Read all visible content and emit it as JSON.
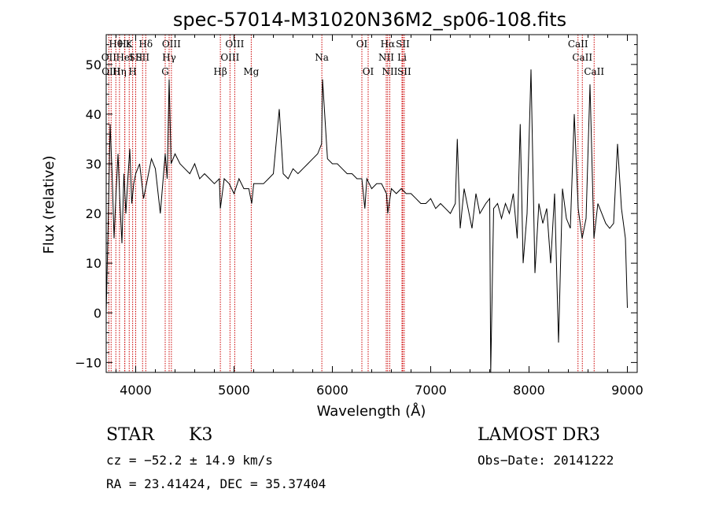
{
  "chart_data": {
    "type": "line",
    "title": "spec-57014-M31020N36M2_sp06-108.fits",
    "xlabel": "Wavelength (Å)",
    "ylabel": "Flux (relative)",
    "xlim": [
      3700,
      9100
    ],
    "ylim": [
      -12,
      56
    ],
    "xticks": [
      4000,
      5000,
      6000,
      7000,
      8000,
      9000
    ],
    "yticks": [
      -10,
      0,
      10,
      20,
      30,
      40,
      50
    ],
    "xtick_labels": [
      "4000",
      "5000",
      "6000",
      "7000",
      "8000",
      "9000"
    ],
    "ytick_labels": [
      "−10",
      "0",
      "10",
      "20",
      "30",
      "40",
      "50"
    ],
    "line_color": "#000000",
    "marker_color": "#cc0000",
    "series": [
      {
        "name": "spectrum",
        "x": [
          3700,
          3720,
          3740,
          3760,
          3780,
          3800,
          3820,
          3840,
          3860,
          3880,
          3900,
          3920,
          3940,
          3960,
          3980,
          4000,
          4040,
          4080,
          4120,
          4160,
          4200,
          4250,
          4300,
          4320,
          4340,
          4360,
          4400,
          4450,
          4500,
          4550,
          4600,
          4650,
          4700,
          4750,
          4800,
          4850,
          4861,
          4900,
          4950,
          5000,
          5050,
          5100,
          5150,
          5180,
          5200,
          5250,
          5300,
          5350,
          5400,
          5460,
          5500,
          5550,
          5600,
          5650,
          5700,
          5750,
          5800,
          5850,
          5890,
          5900,
          5950,
          6000,
          6050,
          6100,
          6150,
          6200,
          6250,
          6300,
          6330,
          6350,
          6400,
          6450,
          6500,
          6550,
          6563,
          6600,
          6650,
          6700,
          6750,
          6800,
          6850,
          6900,
          6950,
          7000,
          7050,
          7100,
          7150,
          7200,
          7250,
          7270,
          7300,
          7340,
          7380,
          7420,
          7460,
          7500,
          7560,
          7600,
          7610,
          7640,
          7680,
          7720,
          7760,
          7800,
          7840,
          7880,
          7910,
          7940,
          7980,
          8020,
          8060,
          8100,
          8140,
          8180,
          8220,
          8260,
          8300,
          8340,
          8380,
          8420,
          8460,
          8500,
          8540,
          8580,
          8620,
          8660,
          8700,
          8740,
          8780,
          8820,
          8860,
          8900,
          8940,
          8980,
          9000
        ],
        "y": [
          0,
          18,
          38,
          28,
          15,
          24,
          32,
          22,
          14,
          28,
          20,
          27,
          33,
          22,
          26,
          28,
          30,
          23,
          27,
          31,
          29,
          20,
          32,
          27,
          47,
          30,
          32,
          30,
          29,
          28,
          30,
          27,
          28,
          27,
          26,
          27,
          21,
          27,
          26,
          24,
          27,
          25,
          25,
          22,
          26,
          26,
          26,
          27,
          28,
          41,
          28,
          27,
          29,
          28,
          29,
          30,
          31,
          32,
          34,
          47,
          31,
          30,
          30,
          29,
          28,
          28,
          27,
          27,
          21,
          27,
          25,
          26,
          26,
          24,
          20,
          25,
          24,
          25,
          24,
          24,
          23,
          22,
          22,
          23,
          21,
          22,
          21,
          20,
          22,
          35,
          17,
          25,
          21,
          17,
          24,
          20,
          22,
          23,
          -12,
          21,
          22,
          19,
          22,
          20,
          24,
          15,
          38,
          10,
          20,
          49,
          8,
          22,
          18,
          21,
          10,
          24,
          -6,
          25,
          19,
          17,
          40,
          21,
          15,
          19,
          46,
          15,
          22,
          20,
          18,
          17,
          18,
          34,
          21,
          15,
          1
        ],
        "values": [
          0,
          18,
          38,
          28,
          15,
          24,
          32,
          22,
          14,
          28,
          20,
          27,
          33,
          22,
          26,
          28,
          30,
          23,
          27,
          31,
          29,
          20,
          32,
          27,
          47,
          30,
          32,
          30,
          29,
          28,
          30,
          27,
          28,
          27,
          26,
          27,
          21,
          27,
          26,
          24,
          27,
          25,
          25,
          22,
          26,
          26,
          26,
          27,
          28,
          41,
          28,
          27,
          29,
          28,
          29,
          30,
          31,
          32,
          34,
          47,
          31,
          30,
          30,
          29,
          28,
          28,
          27,
          27,
          21,
          27,
          25,
          26,
          26,
          24,
          20,
          25,
          24,
          25,
          24,
          24,
          23,
          22,
          22,
          23,
          21,
          22,
          21,
          20,
          22,
          35,
          17,
          25,
          21,
          17,
          24,
          20,
          22,
          23,
          -12,
          21,
          22,
          19,
          22,
          20,
          24,
          15,
          38,
          10,
          20,
          49,
          8,
          22,
          18,
          21,
          10,
          24,
          -6,
          25,
          19,
          17,
          40,
          21,
          15,
          19,
          46,
          15,
          22,
          20,
          18,
          17,
          18,
          34,
          21,
          15,
          1
        ]
      }
    ],
    "line_markers": [
      {
        "name": "Hθ",
        "wave": 3798,
        "row": 0
      },
      {
        "name": "OII",
        "wave": 3727,
        "row": 1
      },
      {
        "name": "OIII",
        "wave": 3750,
        "row": 2
      },
      {
        "name": "Hη",
        "wave": 3835,
        "row": 2
      },
      {
        "name": "Hε",
        "wave": 3889,
        "row": 0
      },
      {
        "name": "HeI",
        "wave": 3889,
        "row": 1
      },
      {
        "name": "K",
        "wave": 3934,
        "row": 0
      },
      {
        "name": "SII",
        "wave": 4000,
        "row": 1
      },
      {
        "name": "H",
        "wave": 3969,
        "row": 2
      },
      {
        "name": "Hδ",
        "wave": 4102,
        "row": 0
      },
      {
        "name": "SII",
        "wave": 4070,
        "row": 1
      },
      {
        "name": "OIII",
        "wave": 4363,
        "row": 0
      },
      {
        "name": "Hγ",
        "wave": 4340,
        "row": 1
      },
      {
        "name": "G",
        "wave": 4300,
        "row": 2
      },
      {
        "name": "OIII",
        "wave": 5007,
        "row": 0
      },
      {
        "name": "OIII",
        "wave": 4959,
        "row": 1
      },
      {
        "name": "Hβ",
        "wave": 4861,
        "row": 2
      },
      {
        "name": "Mg",
        "wave": 5175,
        "row": 2
      },
      {
        "name": "Na",
        "wave": 5893,
        "row": 1
      },
      {
        "name": "OI",
        "wave": 6300,
        "row": 0
      },
      {
        "name": "OI",
        "wave": 6364,
        "row": 2
      },
      {
        "name": "Hα",
        "wave": 6563,
        "row": 0
      },
      {
        "name": "NII",
        "wave": 6548,
        "row": 1
      },
      {
        "name": "NII",
        "wave": 6584,
        "row": 2
      },
      {
        "name": "SII",
        "wave": 6716,
        "row": 0
      },
      {
        "name": "Li",
        "wave": 6708,
        "row": 1
      },
      {
        "name": "SII",
        "wave": 6731,
        "row": 2
      },
      {
        "name": "CaII",
        "wave": 8498,
        "row": 0
      },
      {
        "name": "CaII",
        "wave": 8542,
        "row": 1
      },
      {
        "name": "CaII",
        "wave": 8662,
        "row": 2
      }
    ]
  },
  "info": {
    "object_class": "STAR",
    "subclass": "K3",
    "survey": "LAMOST DR3",
    "velocity": "cz = −52.2 ± 14.9 km/s",
    "coords": "RA =  23.41424, DEC =  35.37404",
    "obs_date": "Obs−Date: 20141222"
  }
}
